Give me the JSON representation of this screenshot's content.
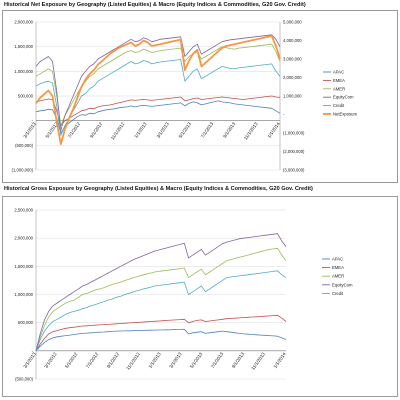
{
  "chart_data": [
    {
      "type": "line",
      "title": "Historical Net Exposure by Geography (Listed Equities) & Macro (Equity Indices & Commodities, G20 Gov. Credit)",
      "x_tick_labels": [
        "3/1/2013",
        "5/1/2012",
        "7/1/2012",
        "9/1/2012",
        "11/1/2012",
        "1/1/2013",
        "3/1/2013",
        "5/1/2013",
        "7/1/2013",
        "9/1/2013",
        "11/1/2013",
        "1/1/2014"
      ],
      "y_left_ticks": [
        "(1,000,000)",
        "(500,000)",
        "-",
        "500,000",
        "1,000,000",
        "1,500,000",
        "2,000,000"
      ],
      "y_left_lim": [
        -1000000,
        2000000
      ],
      "y_right_ticks": [
        "(3,000,000)",
        "(2,000,000)",
        "(1,000,000)",
        "-",
        "1,000,000",
        "2,000,000",
        "3,000,000",
        "4,000,000",
        "5,000,000"
      ],
      "y_right_lim": [
        -3000000,
        5000000
      ],
      "legend_position": "right",
      "series": [
        {
          "name": "APAC",
          "color": "#4f81bd",
          "axis": "left",
          "values": [
            180000,
            200000,
            210000,
            230000,
            220000,
            50000,
            -250000,
            -120000,
            -50000,
            20000,
            80000,
            120000,
            110000,
            150000,
            140000,
            180000,
            200000,
            220000,
            230000,
            240000,
            260000,
            270000,
            280000,
            300000,
            280000,
            300000,
            310000,
            300000,
            290000,
            300000,
            310000,
            320000,
            330000,
            340000,
            350000,
            360000,
            300000,
            350000,
            380000,
            360000,
            320000,
            340000,
            360000,
            380000,
            400000,
            380000,
            370000,
            360000,
            340000,
            330000,
            320000,
            310000,
            300000,
            290000,
            280000,
            270000,
            260000,
            250000,
            200000,
            150000
          ]
        },
        {
          "name": "EMEA",
          "color": "#c0504d",
          "axis": "left",
          "values": [
            380000,
            400000,
            420000,
            440000,
            430000,
            200000,
            -100000,
            0,
            50000,
            100000,
            150000,
            200000,
            220000,
            250000,
            240000,
            280000,
            300000,
            310000,
            320000,
            340000,
            360000,
            380000,
            400000,
            420000,
            410000,
            420000,
            430000,
            420000,
            410000,
            420000,
            430000,
            440000,
            450000,
            460000,
            470000,
            480000,
            400000,
            420000,
            450000,
            460000,
            430000,
            440000,
            450000,
            460000,
            470000,
            480000,
            470000,
            460000,
            450000,
            440000,
            430000,
            440000,
            450000,
            460000,
            470000,
            480000,
            490000,
            500000,
            480000,
            470000
          ]
        },
        {
          "name": "AMER",
          "color": "#9bbb59",
          "axis": "left",
          "values": [
            900000,
            950000,
            1000000,
            1050000,
            1000000,
            500000,
            -100000,
            100000,
            250000,
            400000,
            550000,
            700000,
            800000,
            900000,
            950000,
            1050000,
            1100000,
            1150000,
            1200000,
            1250000,
            1300000,
            1350000,
            1400000,
            1420000,
            1380000,
            1400000,
            1450000,
            1420000,
            1380000,
            1400000,
            1420000,
            1430000,
            1440000,
            1450000,
            1460000,
            1470000,
            1200000,
            1300000,
            1350000,
            1400000,
            1250000,
            1300000,
            1350000,
            1400000,
            1450000,
            1500000,
            1480000,
            1460000,
            1450000,
            1470000,
            1480000,
            1490000,
            1500000,
            1510000,
            1520000,
            1530000,
            1540000,
            1550000,
            1400000,
            1200000
          ]
        },
        {
          "name": "EquityCom",
          "color": "#8064a2",
          "axis": "left",
          "values": [
            1100000,
            1200000,
            1250000,
            1300000,
            1200000,
            600000,
            -200000,
            100000,
            300000,
            500000,
            700000,
            900000,
            1000000,
            1100000,
            1150000,
            1250000,
            1300000,
            1350000,
            1400000,
            1450000,
            1500000,
            1550000,
            1600000,
            1650000,
            1600000,
            1620000,
            1680000,
            1650000,
            1600000,
            1620000,
            1650000,
            1660000,
            1670000,
            1680000,
            1690000,
            1700000,
            1300000,
            1400000,
            1500000,
            1550000,
            1350000,
            1400000,
            1450000,
            1500000,
            1550000,
            1600000,
            1620000,
            1640000,
            1650000,
            1660000,
            1670000,
            1680000,
            1690000,
            1700000,
            1710000,
            1720000,
            1730000,
            1740000,
            1650000,
            1500000
          ]
        },
        {
          "name": "Credit",
          "color": "#4bacc6",
          "axis": "left",
          "values": [
            700000,
            750000,
            780000,
            800000,
            760000,
            300000,
            -300000,
            -100000,
            50000,
            200000,
            350000,
            500000,
            550000,
            650000,
            700000,
            800000,
            850000,
            900000,
            950000,
            1000000,
            1050000,
            1100000,
            1150000,
            1200000,
            1150000,
            1170000,
            1220000,
            1200000,
            1150000,
            1170000,
            1190000,
            1200000,
            1210000,
            1220000,
            1230000,
            1240000,
            800000,
            900000,
            1000000,
            1050000,
            850000,
            900000,
            950000,
            1000000,
            1050000,
            1100000,
            1080000,
            1060000,
            1050000,
            1070000,
            1080000,
            1090000,
            1100000,
            1110000,
            1120000,
            1130000,
            1140000,
            1150000,
            1000000,
            900000
          ]
        },
        {
          "name": "NetExposure",
          "color": "#f79646",
          "axis": "right",
          "values": [
            600000,
            900000,
            1100000,
            1300000,
            1000000,
            -400000,
            -1600000,
            -800000,
            -200000,
            300000,
            900000,
            1500000,
            1900000,
            2200000,
            2400000,
            2700000,
            2900000,
            3100000,
            3300000,
            3450000,
            3600000,
            3700000,
            3800000,
            3900000,
            3700000,
            3800000,
            4000000,
            3900000,
            3700000,
            3750000,
            3800000,
            3850000,
            3900000,
            3950000,
            4000000,
            4050000,
            2400000,
            2900000,
            3300000,
            3500000,
            2600000,
            2800000,
            3000000,
            3200000,
            3400000,
            3600000,
            3700000,
            3750000,
            3800000,
            3850000,
            3900000,
            3950000,
            4000000,
            4050000,
            4100000,
            4150000,
            4200000,
            4250000,
            3700000,
            3000000
          ]
        }
      ]
    },
    {
      "type": "line",
      "title": "Historical Gross Exposure by Geography (Listed Equities) & Macro (Equity Indices & Commodities, G20 Gov. Credit)",
      "x_tick_labels": [
        "3/1/2013",
        "3/1/2012",
        "5/1/2012",
        "7/1/2012",
        "9/1/2012",
        "11/1/2012",
        "1/1/2013",
        "3/1/2013",
        "5/1/2013",
        "7/1/2013",
        "9/1/2013",
        "11/1/2013",
        "1/1/2014"
      ],
      "y_ticks": [
        "(500,000)",
        "-",
        "500,000",
        "1,000,000",
        "1,500,000",
        "2,000,000",
        "2,500,000"
      ],
      "ylim": [
        -500000,
        2500000
      ],
      "legend_position": "right",
      "series": [
        {
          "name": "APAC",
          "color": "#4f81bd",
          "values": [
            0,
            80000,
            150000,
            200000,
            230000,
            250000,
            260000,
            270000,
            280000,
            290000,
            300000,
            310000,
            315000,
            320000,
            325000,
            330000,
            335000,
            340000,
            345000,
            350000,
            352000,
            354000,
            356000,
            358000,
            360000,
            362000,
            364000,
            366000,
            368000,
            370000,
            372000,
            374000,
            376000,
            378000,
            380000,
            382000,
            300000,
            320000,
            330000,
            340000,
            310000,
            320000,
            330000,
            340000,
            350000,
            340000,
            330000,
            320000,
            310000,
            300000,
            295000,
            290000,
            285000,
            280000,
            275000,
            270000,
            265000,
            260000,
            230000,
            200000
          ]
        },
        {
          "name": "EMEA",
          "color": "#c0504d",
          "values": [
            0,
            120000,
            220000,
            300000,
            340000,
            360000,
            380000,
            400000,
            410000,
            420000,
            430000,
            440000,
            445000,
            450000,
            455000,
            460000,
            465000,
            470000,
            475000,
            480000,
            485000,
            490000,
            495000,
            500000,
            505000,
            510000,
            515000,
            520000,
            525000,
            530000,
            535000,
            540000,
            545000,
            550000,
            555000,
            560000,
            500000,
            520000,
            540000,
            550000,
            520000,
            530000,
            540000,
            550000,
            560000,
            570000,
            575000,
            580000,
            585000,
            590000,
            595000,
            600000,
            605000,
            610000,
            615000,
            620000,
            625000,
            630000,
            580000,
            520000
          ]
        },
        {
          "name": "AMER",
          "color": "#9bbb59",
          "values": [
            0,
            250000,
            450000,
            600000,
            700000,
            750000,
            800000,
            850000,
            880000,
            900000,
            950000,
            1000000,
            1020000,
            1050000,
            1080000,
            1100000,
            1120000,
            1150000,
            1180000,
            1200000,
            1220000,
            1250000,
            1270000,
            1300000,
            1320000,
            1340000,
            1360000,
            1380000,
            1400000,
            1410000,
            1420000,
            1430000,
            1440000,
            1450000,
            1460000,
            1470000,
            1300000,
            1350000,
            1400000,
            1450000,
            1350000,
            1400000,
            1450000,
            1500000,
            1550000,
            1600000,
            1620000,
            1640000,
            1660000,
            1680000,
            1700000,
            1720000,
            1740000,
            1760000,
            1780000,
            1800000,
            1810000,
            1820000,
            1700000,
            1600000
          ]
        },
        {
          "name": "EquityCom",
          "color": "#8064a2",
          "values": [
            0,
            300000,
            550000,
            700000,
            800000,
            850000,
            900000,
            950000,
            1000000,
            1050000,
            1100000,
            1150000,
            1180000,
            1220000,
            1260000,
            1300000,
            1340000,
            1380000,
            1420000,
            1460000,
            1500000,
            1540000,
            1580000,
            1620000,
            1650000,
            1680000,
            1710000,
            1740000,
            1770000,
            1790000,
            1810000,
            1830000,
            1850000,
            1870000,
            1890000,
            1910000,
            1650000,
            1700000,
            1750000,
            1800000,
            1700000,
            1750000,
            1800000,
            1850000,
            1900000,
            1930000,
            1950000,
            1970000,
            1990000,
            2000000,
            2010000,
            2020000,
            2030000,
            2040000,
            2050000,
            2060000,
            2070000,
            2080000,
            1950000,
            1850000
          ]
        },
        {
          "name": "Credit",
          "color": "#4bacc6",
          "values": [
            0,
            200000,
            350000,
            450000,
            520000,
            560000,
            600000,
            650000,
            680000,
            700000,
            720000,
            750000,
            770000,
            800000,
            820000,
            850000,
            870000,
            900000,
            920000,
            950000,
            970000,
            1000000,
            1020000,
            1050000,
            1070000,
            1090000,
            1110000,
            1130000,
            1150000,
            1160000,
            1170000,
            1180000,
            1190000,
            1200000,
            1210000,
            1220000,
            1000000,
            1050000,
            1100000,
            1150000,
            1050000,
            1100000,
            1150000,
            1200000,
            1250000,
            1300000,
            1310000,
            1320000,
            1330000,
            1340000,
            1350000,
            1360000,
            1370000,
            1380000,
            1390000,
            1400000,
            1410000,
            1420000,
            1350000,
            1300000
          ]
        }
      ]
    }
  ]
}
